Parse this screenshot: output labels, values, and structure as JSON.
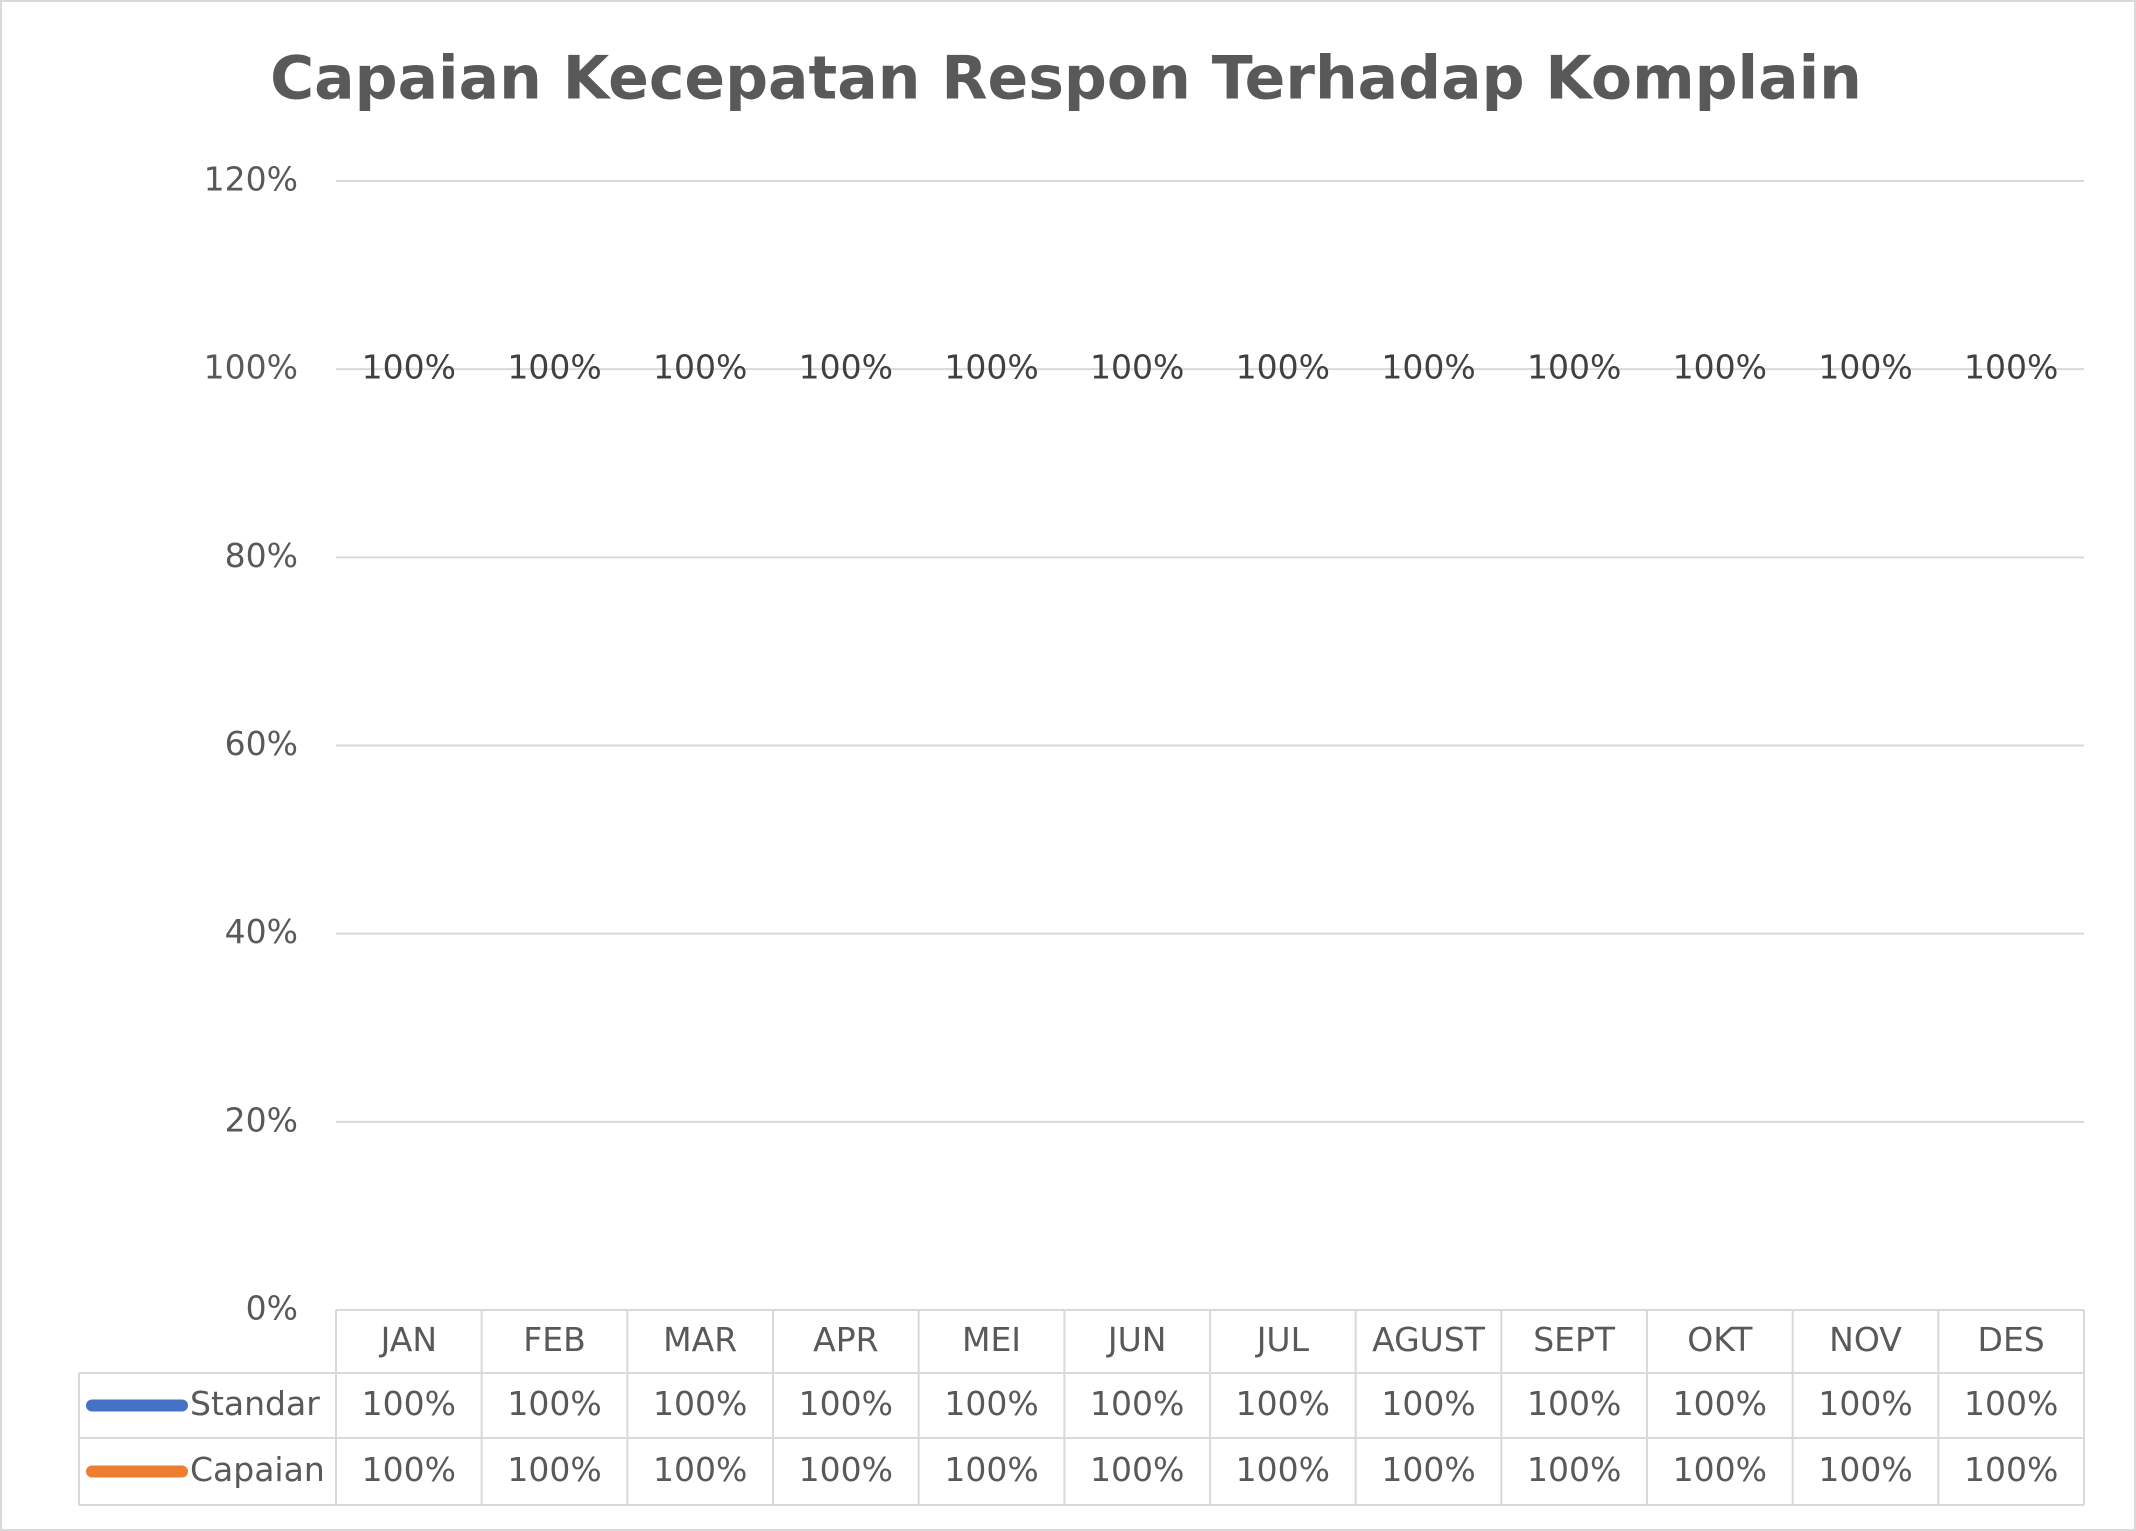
{
  "chart_data": {
    "type": "line",
    "title": "Capaian Kecepatan Respon Terhadap Komplain",
    "categories": [
      "JAN",
      "FEB",
      "MAR",
      "APR",
      "MEI",
      "JUN",
      "JUL",
      "AGUST",
      "SEPT",
      "OKT",
      "NOV",
      "DES"
    ],
    "series": [
      {
        "name": "Standar",
        "color": "#4472c4",
        "values": [
          100,
          100,
          100,
          100,
          100,
          100,
          100,
          100,
          100,
          100,
          100,
          100
        ],
        "value_labels": [
          "100%",
          "100%",
          "100%",
          "100%",
          "100%",
          "100%",
          "100%",
          "100%",
          "100%",
          "100%",
          "100%",
          "100%"
        ]
      },
      {
        "name": "Capaian",
        "color": "#ed7d31",
        "values": [
          100,
          100,
          100,
          100,
          100,
          100,
          100,
          100,
          100,
          100,
          100,
          100
        ],
        "value_labels": [
          "100%",
          "100%",
          "100%",
          "100%",
          "100%",
          "100%",
          "100%",
          "100%",
          "100%",
          "100%",
          "100%",
          "100%"
        ]
      }
    ],
    "ylim": [
      0,
      120
    ],
    "yticks": [
      {
        "value": 0,
        "label": "0%"
      },
      {
        "value": 20,
        "label": "20%"
      },
      {
        "value": 40,
        "label": "40%"
      },
      {
        "value": 60,
        "label": "60%"
      },
      {
        "value": 80,
        "label": "80%"
      },
      {
        "value": 100,
        "label": "100%"
      },
      {
        "value": 120,
        "label": "120%"
      }
    ],
    "grid": true,
    "data_table": true
  }
}
